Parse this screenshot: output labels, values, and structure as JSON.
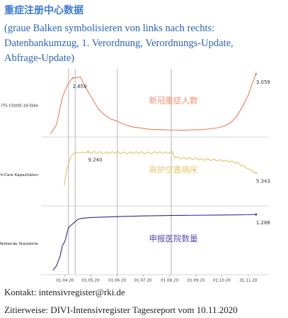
{
  "title": "重症注册中心数据",
  "subtitle": "(graue Balken symbolisieren von links nach rechts: Datenbankumzug, 1. Verordnung, Verordnungs-Update, Abfrage-Update)",
  "chart_data": [
    {
      "type": "line",
      "ylabel": "ITS COVID-19 Fälle",
      "label": "新冠重症人数",
      "color": "#ee7c55",
      "label_color": "#f2906f",
      "xlim": [
        "2020-03-04",
        "2020-11-25"
      ],
      "ylim": [
        0,
        3200
      ],
      "vlines": [
        "2020-04-05",
        "2020-04-13",
        "2020-06-01",
        "2020-08-03"
      ],
      "x": [
        "2020-03-15",
        "2020-03-22",
        "2020-03-29",
        "2020-04-05",
        "2020-04-10",
        "2020-04-19",
        "2020-04-26",
        "2020-05-03",
        "2020-05-10",
        "2020-05-17",
        "2020-05-24",
        "2020-05-31",
        "2020-06-07",
        "2020-06-14",
        "2020-06-21",
        "2020-06-28",
        "2020-07-05",
        "2020-07-12",
        "2020-07-19",
        "2020-07-26",
        "2020-08-02",
        "2020-08-09",
        "2020-08-16",
        "2020-08-23",
        "2020-08-30",
        "2020-09-06",
        "2020-09-13",
        "2020-09-20",
        "2020-09-27",
        "2020-10-04",
        "2020-10-11",
        "2020-10-18",
        "2020-10-25",
        "2020-11-01",
        "2020-11-05",
        "2020-11-10"
      ],
      "values": [
        50,
        500,
        1900,
        2600,
        2850,
        2900,
        2300,
        1800,
        1300,
        1000,
        800,
        700,
        550,
        450,
        380,
        350,
        300,
        270,
        260,
        250,
        240,
        240,
        230,
        240,
        250,
        260,
        280,
        320,
        360,
        450,
        600,
        900,
        1400,
        2000,
        2500,
        3059
      ],
      "annotations": [
        {
          "x": "2020-04-10",
          "value": 2850,
          "label": "2.850"
        },
        {
          "x": "2020-11-10",
          "value": 3059,
          "label": "3.059"
        }
      ]
    },
    {
      "type": "line",
      "ylabel": "freie High-Care Kapazitäten",
      "label": "高护空置病床",
      "color": "#e0c263",
      "label_color": "#e8c66a",
      "xlim": [
        "2020-03-04",
        "2020-11-25"
      ],
      "ylim": [
        0,
        11000
      ],
      "vlines": [
        "2020-04-05",
        "2020-04-13",
        "2020-06-01",
        "2020-08-03"
      ],
      "x": [
        "2020-03-31",
        "2020-04-03",
        "2020-04-07",
        "2020-04-10",
        "2020-04-14",
        "2020-04-17",
        "2020-04-21",
        "2020-04-24",
        "2020-04-28",
        "2020-05-01",
        "2020-05-05",
        "2020-05-08",
        "2020-05-12",
        "2020-05-15",
        "2020-05-19",
        "2020-05-22",
        "2020-05-26",
        "2020-05-29",
        "2020-06-02",
        "2020-06-05",
        "2020-06-09",
        "2020-06-12",
        "2020-06-16",
        "2020-06-19",
        "2020-06-23",
        "2020-06-26",
        "2020-06-30",
        "2020-07-03",
        "2020-07-07",
        "2020-07-10",
        "2020-07-14",
        "2020-07-17",
        "2020-07-21",
        "2020-07-24",
        "2020-07-28",
        "2020-07-31",
        "2020-08-04",
        "2020-08-07",
        "2020-08-11",
        "2020-08-14",
        "2020-08-18",
        "2020-08-21",
        "2020-08-25",
        "2020-08-28",
        "2020-09-01",
        "2020-09-04",
        "2020-09-08",
        "2020-09-11",
        "2020-09-15",
        "2020-09-18",
        "2020-09-22",
        "2020-09-25",
        "2020-09-29",
        "2020-10-02",
        "2020-10-06",
        "2020-10-09",
        "2020-10-13",
        "2020-10-16",
        "2020-10-20",
        "2020-10-23",
        "2020-10-27",
        "2020-10-30",
        "2020-11-03",
        "2020-11-06",
        "2020-11-10"
      ],
      "values": [
        3000,
        6000,
        8000,
        8800,
        9100,
        9000,
        9150,
        9000,
        9240,
        8900,
        9300,
        8900,
        9250,
        8850,
        9200,
        8850,
        9250,
        8900,
        9250,
        8850,
        9200,
        8800,
        9200,
        8850,
        9250,
        8900,
        9250,
        8850,
        9200,
        8850,
        9250,
        8900,
        9250,
        8850,
        9200,
        8900,
        9300,
        8100,
        8300,
        7900,
        8200,
        7850,
        8150,
        7800,
        8100,
        7700,
        8000,
        7650,
        7950,
        7600,
        7900,
        7550,
        7800,
        7450,
        7700,
        7350,
        7550,
        7150,
        7250,
        6750,
        6600,
        6200,
        6000,
        5600,
        5343
      ],
      "annotations": [
        {
          "x": "2020-04-28",
          "value": 9240,
          "label": "9.240"
        },
        {
          "x": "2020-11-10",
          "value": 5343,
          "label": "5.343"
        }
      ]
    },
    {
      "type": "line",
      "ylabel": "Meldende Standorte",
      "label": "申报医院数量",
      "color": "#2f2b8f",
      "label_color": "#5a4fae",
      "xlim": [
        "2020-03-04",
        "2020-11-25"
      ],
      "ylim": [
        0,
        1400
      ],
      "vlines": [
        "2020-04-05",
        "2020-04-13",
        "2020-06-01",
        "2020-08-03"
      ],
      "x": [
        "2020-03-18",
        "2020-03-22",
        "2020-03-26",
        "2020-03-29",
        "2020-04-01",
        "2020-04-03",
        "2020-04-05",
        "2020-04-10",
        "2020-04-16",
        "2020-04-20",
        "2020-05-01",
        "2020-06-01",
        "2020-07-01",
        "2020-08-01",
        "2020-09-01",
        "2020-10-01",
        "2020-11-01",
        "2020-11-10"
      ],
      "values": [
        50,
        150,
        350,
        600,
        700,
        850,
        1000,
        1080,
        1180,
        1200,
        1220,
        1240,
        1255,
        1265,
        1270,
        1275,
        1282,
        1288
      ],
      "annotations": [
        {
          "x": "2020-11-10",
          "value": 1288,
          "label": "1.288"
        }
      ],
      "xticks": [
        {
          "value": "2020-04-01",
          "label": "01.04.20"
        },
        {
          "value": "2020-05-01",
          "label": "01.05.20"
        },
        {
          "value": "2020-06-01",
          "label": "01.06.20"
        },
        {
          "value": "2020-07-01",
          "label": "01.07.20"
        },
        {
          "value": "2020-08-01",
          "label": "01.08.20"
        },
        {
          "value": "2020-09-01",
          "label": "01.09.20"
        },
        {
          "value": "2020-10-01",
          "label": "01.10.20"
        },
        {
          "value": "2020-11-01",
          "label": "01.11.20"
        }
      ]
    }
  ],
  "footer": {
    "contact": "Kontakt: intensivregister@rki.de",
    "citation": "Zitierweise: DIVI-Intensivregister Tagesreport vom 10.11.2020"
  }
}
